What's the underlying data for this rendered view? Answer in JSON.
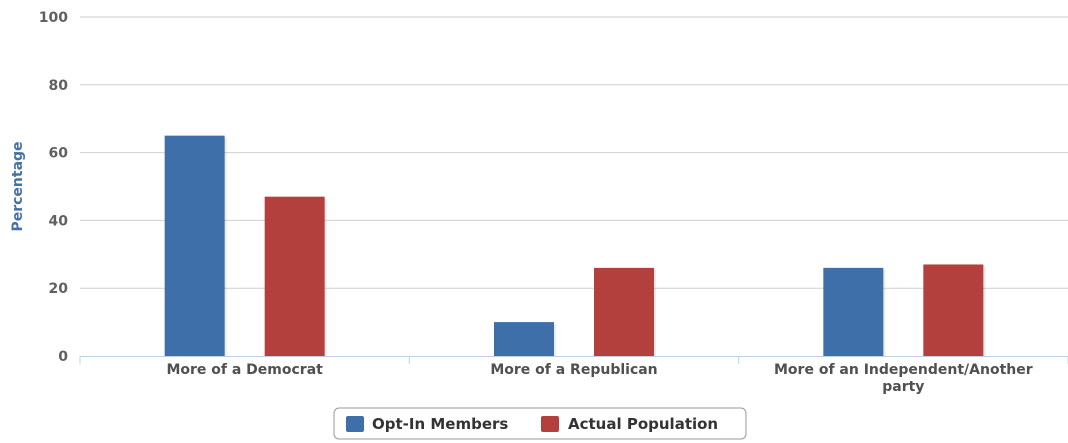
{
  "chart_data": {
    "type": "bar",
    "categories": [
      "More of a Democrat",
      "More of a Republican",
      "More of an Independent/Another party"
    ],
    "series": [
      {
        "name": "Opt-In Members",
        "values": [
          65,
          10,
          26
        ],
        "color": "#3e6fa8"
      },
      {
        "name": "Actual Population",
        "values": [
          47,
          26,
          27
        ],
        "color": "#b3403c"
      }
    ],
    "ylabel": "Percentage",
    "ylim": [
      0,
      100
    ],
    "yticks": [
      0,
      20,
      40,
      60,
      80,
      100
    ],
    "grid": true,
    "legend_position": "bottom-center"
  }
}
